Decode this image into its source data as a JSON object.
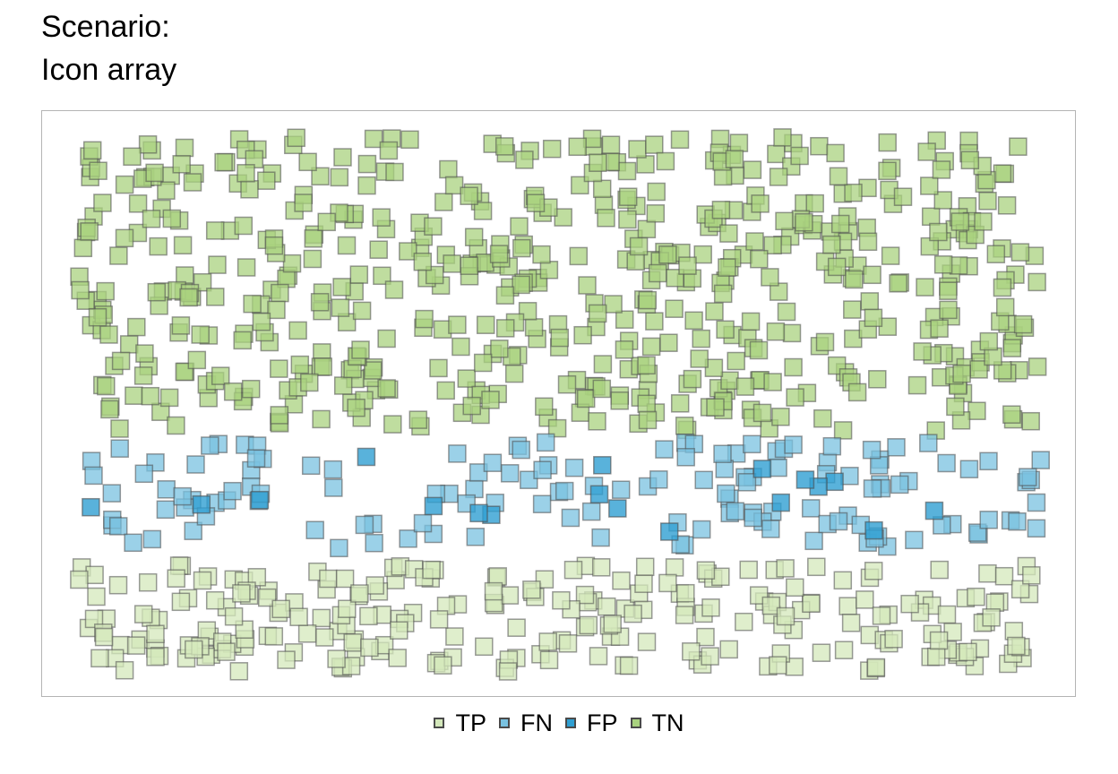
{
  "header": {
    "line1": "Scenario:",
    "line2": "Icon array"
  },
  "chart_data": {
    "type": "scatter",
    "title": "Scenario: Icon array",
    "xlabel": "",
    "ylabel": "",
    "grid": false,
    "axes_shown": false,
    "legend_placement": "bottom-center",
    "series": [
      {
        "name": "TP",
        "color": "#d4e8bb",
        "count": 254
      },
      {
        "name": "FN",
        "color": "#79c2e0",
        "count": 140
      },
      {
        "name": "FP",
        "color": "#2f9fd2",
        "count": 18
      },
      {
        "name": "TN",
        "color": "#a9d27f",
        "count": 588
      }
    ]
  }
}
